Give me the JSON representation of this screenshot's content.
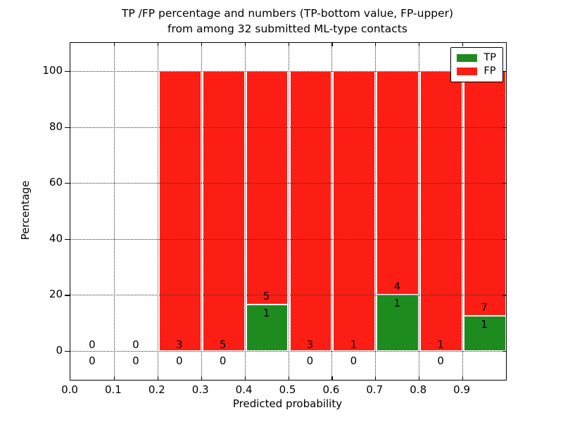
{
  "figure": {
    "title_line1": "TP /FP percentage and numbers (TP-bottom value, FP-upper)",
    "title_line2": "from among 32 submitted ML-type contacts"
  },
  "chart_data": {
    "type": "bar",
    "stacked": true,
    "title": "TP /FP percentage and numbers (TP-bottom value, FP-upper)\nfrom among 32 submitted ML-type contacts",
    "xlabel": "Predicted probability",
    "ylabel": "Percentage",
    "xlim": [
      0.0,
      1.0
    ],
    "ylim": [
      -10,
      110
    ],
    "grid": "dotted",
    "total_submitted": 32,
    "x_tick_values": [
      0.0,
      0.1,
      0.2,
      0.3,
      0.4,
      0.5,
      0.6,
      0.7,
      0.8,
      0.9
    ],
    "x_tick_labels": [
      "0.0",
      "0.1",
      "0.2",
      "0.3",
      "0.4",
      "0.5",
      "0.6",
      "0.7",
      "0.8",
      "0.9"
    ],
    "y_tick_values": [
      0,
      20,
      40,
      60,
      80,
      100
    ],
    "y_tick_labels": [
      "0",
      "20",
      "40",
      "60",
      "80",
      "100"
    ],
    "bin_width": 0.1,
    "bins": [
      {
        "x_start": 0.0,
        "x_end": 0.1,
        "center": 0.05,
        "tp_count": 0,
        "fp_count": 0,
        "tp_pct": 0,
        "fp_pct": 0
      },
      {
        "x_start": 0.1,
        "x_end": 0.2,
        "center": 0.15,
        "tp_count": 0,
        "fp_count": 0,
        "tp_pct": 0,
        "fp_pct": 0
      },
      {
        "x_start": 0.2,
        "x_end": 0.3,
        "center": 0.25,
        "tp_count": 0,
        "fp_count": 3,
        "tp_pct": 0,
        "fp_pct": 100
      },
      {
        "x_start": 0.3,
        "x_end": 0.4,
        "center": 0.35,
        "tp_count": 0,
        "fp_count": 5,
        "tp_pct": 0,
        "fp_pct": 100
      },
      {
        "x_start": 0.4,
        "x_end": 0.5,
        "center": 0.45,
        "tp_count": 1,
        "fp_count": 5,
        "tp_pct": 16.67,
        "fp_pct": 83.33
      },
      {
        "x_start": 0.5,
        "x_end": 0.6,
        "center": 0.55,
        "tp_count": 0,
        "fp_count": 3,
        "tp_pct": 0,
        "fp_pct": 100
      },
      {
        "x_start": 0.6,
        "x_end": 0.7,
        "center": 0.65,
        "tp_count": 0,
        "fp_count": 1,
        "tp_pct": 0,
        "fp_pct": 100
      },
      {
        "x_start": 0.7,
        "x_end": 0.8,
        "center": 0.75,
        "tp_count": 1,
        "fp_count": 4,
        "tp_pct": 20,
        "fp_pct": 80
      },
      {
        "x_start": 0.8,
        "x_end": 0.9,
        "center": 0.85,
        "tp_count": 0,
        "fp_count": 1,
        "tp_pct": 0,
        "fp_pct": 100
      },
      {
        "x_start": 0.9,
        "x_end": 1.0,
        "center": 0.95,
        "tp_count": 1,
        "fp_count": 7,
        "tp_pct": 12.5,
        "fp_pct": 87.5
      }
    ],
    "legend": {
      "position": "upper right",
      "entries": [
        {
          "label": "TP",
          "color": "#1e8b1e"
        },
        {
          "label": "FP",
          "color": "#fc1e14"
        }
      ]
    },
    "colors": {
      "tp": "#1e8b1e",
      "fp": "#fc1e14",
      "bar_edge": "#ffffff",
      "grid": "#333333",
      "spine": "#000000",
      "text": "#000000",
      "background": "#ffffff"
    }
  }
}
